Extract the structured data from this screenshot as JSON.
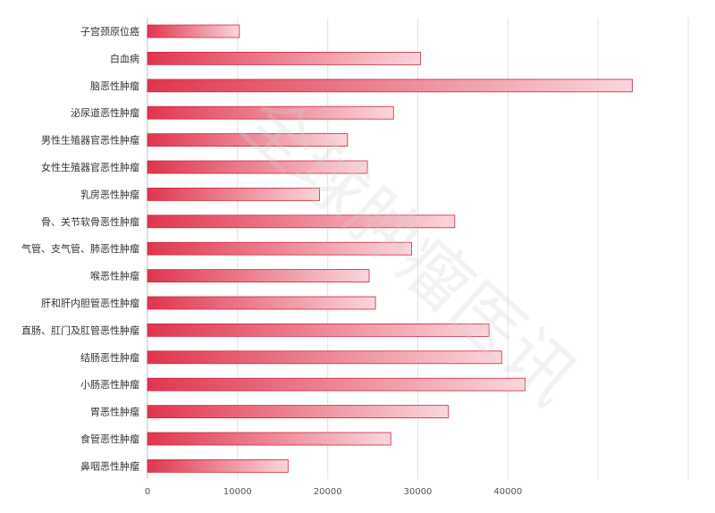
{
  "chart_data": {
    "type": "bar",
    "orientation": "horizontal",
    "categories": [
      "子宫颈原位癌",
      "白血病",
      "脑恶性肿瘤",
      "泌尿道恶性肿瘤",
      "男性生殖器官恶性肿瘤",
      "女性生殖器官恶性肿瘤",
      "乳房恶性肿瘤",
      "骨、关节软骨恶性肿瘤",
      "气管、支气管、肺恶性肿瘤",
      "喉恶性肿瘤",
      "肝和肝内胆管恶性肿瘤",
      "直肠、肛门及肛管恶性肿瘤",
      "结肠恶性肿瘤",
      "小肠恶性肿瘤",
      "胃恶性肿瘤",
      "食管恶性肿瘤",
      "鼻咽恶性肿瘤"
    ],
    "values": [
      10200,
      30300,
      53800,
      27300,
      22200,
      24400,
      19100,
      34100,
      29300,
      24600,
      25300,
      37900,
      39300,
      41900,
      33400,
      27000,
      15600
    ],
    "xlim": [
      0,
      60000
    ],
    "xticks": [
      0,
      10000,
      20000,
      30000,
      40000
    ],
    "grid": true,
    "bar_color": "#e0354f",
    "bar_color_light": "#fbd6dc",
    "watermark": "全球肿瘤医讯"
  }
}
